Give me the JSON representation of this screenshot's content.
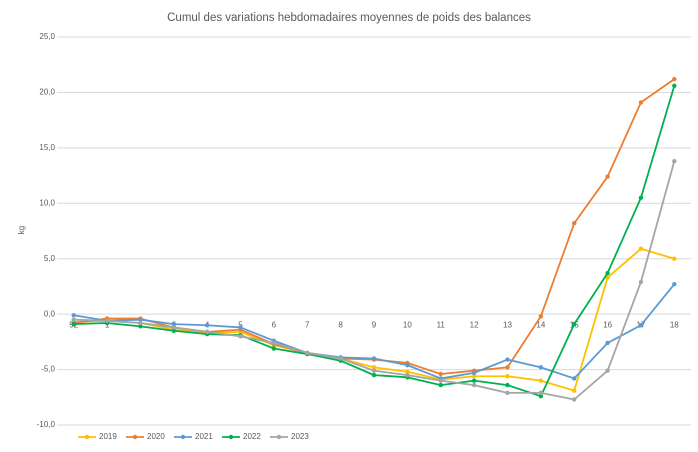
{
  "chart_data": {
    "type": "line",
    "title": "Cumul des variations hebdomadaires moyennes de poids des balances",
    "y_label": "kg",
    "categories": [
      "52",
      "1",
      "2",
      "3",
      "4",
      "5",
      "6",
      "7",
      "8",
      "9",
      "10",
      "11",
      "12",
      "13",
      "14",
      "15",
      "16",
      "17",
      "18"
    ],
    "ylim": [
      -10,
      25
    ],
    "yticks": [
      {
        "value": -10,
        "label": "-10,0"
      },
      {
        "value": -5,
        "label": "-5,0"
      },
      {
        "value": 0,
        "label": "0,0"
      },
      {
        "value": 5,
        "label": "5,0"
      },
      {
        "value": 10,
        "label": "10,0"
      },
      {
        "value": 15,
        "label": "15,0"
      },
      {
        "value": 20,
        "label": "20,0"
      },
      {
        "value": 25,
        "label": "25,0"
      }
    ],
    "grid": true,
    "legend": "bottom-left",
    "series": [
      {
        "name": "2019",
        "color": "#ffc000",
        "values": [
          -0.7,
          -0.6,
          -0.8,
          -1.4,
          -1.7,
          -1.6,
          -2.8,
          -3.5,
          -4.0,
          -4.8,
          -5.2,
          -5.9,
          -5.6,
          -5.6,
          -6.0,
          -6.9,
          3.3,
          5.9,
          5.0
        ]
      },
      {
        "name": "2020",
        "color": "#ed7d31",
        "values": [
          -0.8,
          -0.4,
          -0.4,
          -1.2,
          -1.6,
          -1.4,
          -2.7,
          -3.5,
          -4.0,
          -4.1,
          -4.4,
          -5.4,
          -5.1,
          -4.8,
          -0.2,
          8.2,
          12.4,
          19.1,
          21.2
        ]
      },
      {
        "name": "2021",
        "color": "#5b9bd5",
        "values": [
          -0.1,
          -0.6,
          -0.5,
          -0.9,
          -1.0,
          -1.2,
          -2.4,
          -3.5,
          -3.9,
          -4.0,
          -4.6,
          -5.8,
          -5.3,
          -4.1,
          -4.8,
          -5.8,
          -2.6,
          -1.0,
          2.7
        ]
      },
      {
        "name": "2022",
        "color": "#00b050",
        "values": [
          -0.9,
          -0.8,
          -1.1,
          -1.5,
          -1.8,
          -1.9,
          -3.1,
          -3.6,
          -4.2,
          -5.5,
          -5.7,
          -6.4,
          -6.0,
          -6.4,
          -7.4,
          -0.9,
          3.7,
          10.5,
          20.6
        ]
      },
      {
        "name": "2023",
        "color": "#a5a5a5",
        "values": [
          -0.5,
          -0.6,
          -0.8,
          -1.2,
          -1.6,
          -2.0,
          -2.6,
          -3.5,
          -4.0,
          -5.1,
          -5.5,
          -6.0,
          -6.4,
          -7.1,
          -7.1,
          -7.7,
          -5.1,
          2.9,
          13.8
        ]
      }
    ]
  }
}
